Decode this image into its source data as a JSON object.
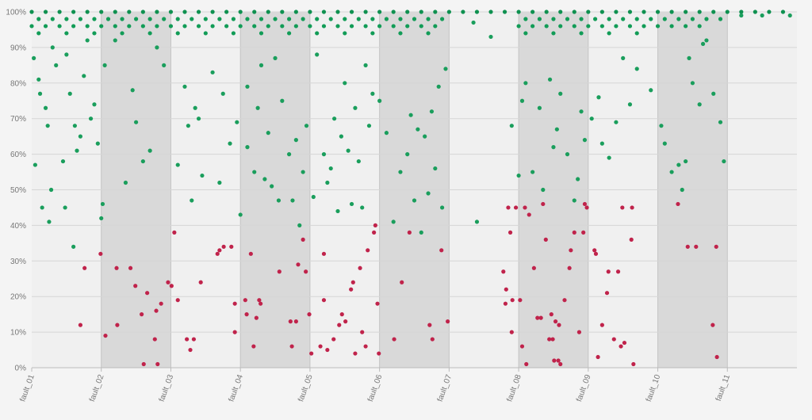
{
  "chart_data": {
    "type": "scatter",
    "xlim": [
      0,
      11
    ],
    "xticks": [
      {
        "value": 0,
        "label": "fault_01"
      },
      {
        "value": 1,
        "label": "fault_02"
      },
      {
        "value": 2,
        "label": "fault_03"
      },
      {
        "value": 3,
        "label": "fault_04"
      },
      {
        "value": 4,
        "label": "fault_05"
      },
      {
        "value": 5,
        "label": "fault_06"
      },
      {
        "value": 6,
        "label": "fault_07"
      },
      {
        "value": 7,
        "label": "fault_08"
      },
      {
        "value": 8,
        "label": "fault_09"
      },
      {
        "value": 9,
        "label": "fault_10"
      },
      {
        "value": 10,
        "label": "fault_11"
      }
    ],
    "ylim": [
      0,
      100
    ],
    "yticks": [
      {
        "value": 0,
        "label": "0%"
      },
      {
        "value": 10,
        "label": "10%"
      },
      {
        "value": 20,
        "label": "20%"
      },
      {
        "value": 30,
        "label": "30%"
      },
      {
        "value": 40,
        "label": "40%"
      },
      {
        "value": 50,
        "label": "50%"
      },
      {
        "value": 60,
        "label": "60%"
      },
      {
        "value": 70,
        "label": "70%"
      },
      {
        "value": 80,
        "label": "80%"
      },
      {
        "value": 90,
        "label": "90%"
      },
      {
        "value": 100,
        "label": "100%"
      }
    ],
    "grid": true,
    "bands": true,
    "series": [
      {
        "color": "#0f9150",
        "x": [
          0,
          0.2,
          0.4,
          0.6,
          0.8,
          1,
          1.2,
          1.4,
          1.6,
          1.8,
          2,
          2.2,
          2.4,
          2.6,
          2.8,
          3,
          3.2,
          3.4,
          3.6,
          3.8,
          4,
          4.2,
          4.4,
          4.6,
          4.8,
          5,
          5.2,
          5.4,
          5.6,
          5.8,
          6,
          6.2,
          6.4,
          6.6,
          6.8,
          7,
          7.2,
          7.4,
          7.6,
          7.8,
          8,
          8.2,
          8.4,
          8.6,
          8.8,
          9,
          9.2,
          9.4,
          9.6,
          9.8,
          10,
          10.2,
          10.4,
          10.6,
          10.8
        ],
        "values": [
          100,
          100,
          100,
          100,
          100,
          100,
          100,
          100,
          100,
          100,
          100,
          100,
          100,
          100,
          100,
          100,
          100,
          100,
          100,
          100,
          100,
          100,
          100,
          100,
          100,
          100,
          100,
          100,
          100,
          100,
          100,
          100,
          100,
          100,
          100,
          100,
          100,
          100,
          100,
          100,
          100,
          100,
          100,
          100,
          100,
          100,
          100,
          100,
          100,
          100,
          100,
          100,
          100,
          100,
          100
        ]
      },
      {
        "color": "#129c57",
        "x": [
          0.1,
          0.3,
          0.5,
          0.7,
          0.9,
          1.1,
          1.3,
          1.5,
          1.7,
          1.9,
          2.1,
          2.3,
          2.5,
          2.7,
          2.9,
          3.1,
          3.3,
          3.5,
          3.7,
          3.9,
          4.1,
          4.3,
          4.5,
          4.7,
          4.9,
          5.1,
          5.3,
          5.5,
          5.7,
          5.9,
          7.1,
          7.3,
          7.5,
          7.7,
          7.9,
          8.1,
          8.3,
          8.5,
          8.7,
          8.9,
          9.1,
          9.3,
          9.5,
          9.7,
          9.9
        ],
        "values": [
          98,
          98,
          98,
          98,
          98,
          98,
          98,
          98,
          98,
          98,
          98,
          98,
          98,
          98,
          98,
          98,
          98,
          98,
          98,
          98,
          98,
          98,
          98,
          98,
          98,
          98,
          98,
          98,
          98,
          98,
          98,
          98,
          98,
          98,
          98,
          98,
          98,
          98,
          98,
          98,
          98,
          98,
          98,
          98,
          98
        ]
      },
      {
        "color": "#129c57",
        "x": [
          0,
          0.2,
          0.4,
          0.6,
          0.8,
          1,
          1.2,
          1.4,
          1.6,
          1.8,
          2,
          2.2,
          2.4,
          2.6,
          2.8,
          3,
          3.2,
          3.4,
          3.6,
          3.8,
          4,
          4.2,
          4.4,
          4.6,
          4.8,
          5,
          5.2,
          5.4,
          5.6,
          5.8,
          7,
          7.2,
          7.4,
          7.6,
          7.8,
          8,
          8.2,
          8.4,
          8.6,
          8.8,
          9,
          9.2,
          9.4,
          9.6
        ],
        "values": [
          96,
          96,
          96,
          96,
          96,
          96,
          96,
          96,
          96,
          96,
          96,
          96,
          96,
          96,
          96,
          96,
          96,
          96,
          96,
          96,
          96,
          96,
          96,
          96,
          96,
          96,
          96,
          96,
          96,
          96,
          96,
          96,
          96,
          96,
          96,
          96,
          96,
          96,
          96,
          96,
          96,
          96,
          96,
          96
        ]
      },
      {
        "color": "#129c57",
        "x": [
          0.1,
          0.5,
          0.9,
          1.3,
          1.7,
          2.1,
          2.5,
          2.9,
          3.3,
          3.7,
          4.1,
          4.5,
          4.9,
          5.3,
          5.7,
          7.1,
          7.5,
          7.9,
          8.3,
          8.7
        ],
        "values": [
          94,
          94,
          94,
          94,
          94,
          94,
          94,
          94,
          94,
          94,
          94,
          94,
          94,
          94,
          94,
          94,
          94,
          94,
          94,
          94
        ]
      },
      {
        "color": "#1a9e5c",
        "x": [
          0.03,
          0.05,
          0.1,
          0.12,
          0.15,
          0.2,
          0.23,
          0.25,
          0.28,
          0.3,
          0.35,
          0.45,
          0.48,
          0.5,
          0.55,
          0.6,
          0.62,
          0.65,
          0.7,
          0.75,
          0.8,
          0.85,
          0.9,
          0.95,
          1.0,
          1.02,
          1.05,
          1.2,
          1.35,
          1.45,
          1.5,
          1.6,
          1.7,
          1.8,
          1.9,
          2.1,
          2.2,
          2.25,
          2.3,
          2.35,
          2.4,
          2.45,
          2.6,
          2.7,
          2.75,
          2.85,
          2.95,
          3.0,
          3.1,
          3.1,
          3.2,
          3.25,
          3.3,
          3.35,
          3.4,
          3.45,
          3.5,
          3.55,
          3.6,
          3.7,
          3.75,
          3.8,
          3.85,
          3.9,
          3.95,
          4.05,
          4.1,
          4.2,
          4.25,
          4.3,
          4.35,
          4.4,
          4.45,
          4.5,
          4.55,
          4.6,
          4.65,
          4.7,
          4.75,
          4.8,
          4.85,
          4.9,
          5.0,
          5.1,
          5.2,
          5.3,
          5.4,
          5.45,
          5.5,
          5.55,
          5.6,
          5.65,
          5.7,
          5.75,
          5.8,
          5.85,
          5.9,
          5.95,
          6.35,
          6.4,
          6.6,
          6.9,
          7.0,
          7.05,
          7.1,
          7.2,
          7.3,
          7.35,
          7.45,
          7.5,
          7.55,
          7.6,
          7.7,
          7.8,
          7.85,
          7.9,
          7.95,
          8.05,
          8.15,
          8.2,
          8.3,
          8.4,
          8.5,
          8.6,
          8.7,
          8.9,
          9.05,
          9.1,
          9.2,
          9.3,
          9.35,
          9.4,
          9.45,
          9.5,
          9.6,
          9.65,
          9.7,
          9.8,
          9.9,
          9.95,
          10.2,
          10.5,
          10.9
        ],
        "values": [
          87,
          57,
          81,
          77,
          45,
          73,
          68,
          41,
          50,
          90,
          85,
          58,
          45,
          88,
          77,
          34,
          68,
          61,
          65,
          82,
          92,
          70,
          74,
          63,
          42,
          46,
          85,
          92,
          52,
          78,
          69,
          58,
          61,
          90,
          85,
          57,
          79,
          68,
          47,
          73,
          70,
          54,
          83,
          52,
          77,
          63,
          69,
          43,
          62,
          79,
          55,
          73,
          85,
          53,
          66,
          51,
          87,
          47,
          75,
          60,
          47,
          64,
          40,
          55,
          68,
          48,
          88,
          60,
          52,
          56,
          70,
          44,
          65,
          80,
          61,
          46,
          73,
          58,
          45,
          85,
          68,
          77,
          75,
          66,
          41,
          55,
          60,
          71,
          47,
          67,
          38,
          65,
          49,
          72,
          56,
          79,
          45,
          84,
          97,
          41,
          93,
          68,
          54,
          75,
          80,
          55,
          73,
          50,
          81,
          62,
          67,
          77,
          60,
          47,
          53,
          72,
          64,
          70,
          76,
          63,
          59,
          69,
          87,
          74,
          84,
          78,
          68,
          63,
          55,
          57,
          50,
          58,
          87,
          80,
          74,
          91,
          92,
          77,
          69,
          58,
          99,
          99,
          99
        ]
      },
      {
        "color": "#c0234b",
        "x": [
          0.7,
          0.76,
          0.99,
          1.06,
          1.22,
          1.23,
          1.42,
          1.49,
          1.58,
          1.61,
          1.66,
          1.77,
          1.79,
          1.81,
          1.86,
          1.96,
          2.01,
          2.05,
          2.1,
          2.23,
          2.28,
          2.33,
          2.43,
          2.67,
          2.7,
          2.76,
          2.87,
          2.92,
          2.92,
          3.07,
          3.09,
          3.15,
          3.19,
          3.23,
          3.27,
          3.29,
          3.56,
          3.72,
          3.74,
          3.8,
          3.83,
          3.9,
          3.94,
          3.99,
          4.02,
          4.15,
          4.2,
          4.2,
          4.25,
          4.34,
          4.42,
          4.46,
          4.51,
          4.59,
          4.62,
          4.65,
          4.72,
          4.75,
          4.8,
          4.83,
          4.92,
          4.94,
          4.97,
          4.99,
          5.21,
          5.32,
          5.43,
          5.72,
          5.76,
          5.89,
          5.98,
          6.78,
          6.81,
          6.82,
          6.85,
          6.88,
          6.9,
          6.91,
          6.96,
          7.02,
          7.05,
          7.09,
          7.11,
          7.15,
          7.22,
          7.27,
          7.32,
          7.35,
          7.39,
          7.44,
          7.47,
          7.49,
          7.51,
          7.53,
          7.57,
          7.58,
          7.6,
          7.66,
          7.73,
          7.75,
          7.8,
          7.87,
          7.93,
          7.95,
          7.98,
          8.09,
          8.11,
          8.14,
          8.2,
          8.27,
          8.29,
          8.37,
          8.43,
          8.47,
          8.49,
          8.52,
          8.62,
          8.63,
          8.65,
          9.29,
          9.43,
          9.55,
          9.79,
          9.85,
          9.84
        ],
        "values": [
          12,
          28,
          32,
          9,
          28,
          12,
          28,
          23,
          15,
          1,
          21,
          8,
          16,
          1,
          18,
          24,
          23,
          38,
          19,
          8,
          5,
          8,
          24,
          32,
          33,
          34,
          34,
          18,
          10,
          19,
          15,
          32,
          6,
          14,
          19,
          18,
          27,
          13,
          6,
          13,
          29,
          36,
          27,
          15,
          4,
          6,
          32,
          19,
          5,
          8,
          12,
          15,
          13,
          22,
          24,
          4,
          28,
          10,
          6,
          33,
          38,
          40,
          18,
          4,
          8,
          24,
          38,
          12,
          8,
          33,
          13,
          27,
          18,
          22,
          45,
          38,
          10,
          19,
          45,
          19,
          6,
          45,
          1,
          43,
          28,
          14,
          14,
          46,
          36,
          8,
          15,
          8,
          2,
          13,
          2,
          12,
          1,
          19,
          28,
          33,
          38,
          10,
          38,
          46,
          45,
          33,
          32,
          3,
          12,
          21,
          27,
          8,
          27,
          6,
          45,
          7,
          36,
          45,
          1,
          46,
          34,
          34,
          12,
          3,
          34
        ]
      }
    ]
  }
}
